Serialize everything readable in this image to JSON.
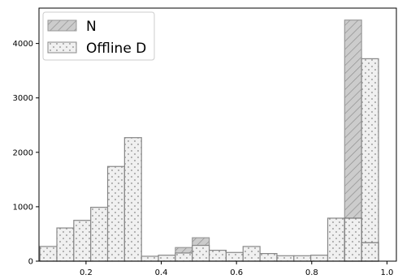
{
  "chart_data": {
    "type": "bar",
    "title": "",
    "xlabel": "",
    "ylabel": "",
    "xlim": [
      0.075,
      1.025
    ],
    "ylim": [
      0,
      4650
    ],
    "x_ticks": [
      0.2,
      0.4,
      0.6,
      0.8,
      1.0
    ],
    "x_tick_labels": [
      "0.2",
      "0.4",
      "0.6",
      "0.8",
      "1.0"
    ],
    "y_ticks": [
      0,
      1000,
      2000,
      3000,
      4000
    ],
    "y_tick_labels": [
      "0",
      "1000",
      "2000",
      "3000",
      "4000"
    ],
    "grid": false,
    "legend_position": "top-left",
    "bin_width": 0.045,
    "series": [
      {
        "name": "N",
        "pattern": "diagonal-hatch",
        "fill": "#cccccc",
        "stroke": "#999999",
        "bins": [
          {
            "x": 0.1,
            "value": 80
          },
          {
            "x": 0.145,
            "value": 60
          },
          {
            "x": 0.19,
            "value": 50
          },
          {
            "x": 0.235,
            "value": 40
          },
          {
            "x": 0.28,
            "value": 30
          },
          {
            "x": 0.325,
            "value": 30
          },
          {
            "x": 0.37,
            "value": 40
          },
          {
            "x": 0.415,
            "value": 70
          },
          {
            "x": 0.46,
            "value": 250
          },
          {
            "x": 0.505,
            "value": 430
          },
          {
            "x": 0.55,
            "value": 130
          },
          {
            "x": 0.595,
            "value": 90
          },
          {
            "x": 0.64,
            "value": 70
          },
          {
            "x": 0.685,
            "value": 60
          },
          {
            "x": 0.73,
            "value": 60
          },
          {
            "x": 0.775,
            "value": 60
          },
          {
            "x": 0.82,
            "value": 50
          },
          {
            "x": 0.865,
            "value": 80
          },
          {
            "x": 0.91,
            "value": 4430
          },
          {
            "x": 0.955,
            "value": 40
          }
        ]
      },
      {
        "name": "Offline D",
        "pattern": "dots",
        "fill": "#f0f0f0",
        "stroke": "#888888",
        "bins": [
          {
            "x": 0.1,
            "value": 270
          },
          {
            "x": 0.145,
            "value": 610
          },
          {
            "x": 0.19,
            "value": 750
          },
          {
            "x": 0.235,
            "value": 990
          },
          {
            "x": 0.28,
            "value": 1740
          },
          {
            "x": 0.325,
            "value": 2270
          },
          {
            "x": 0.37,
            "value": 90
          },
          {
            "x": 0.415,
            "value": 110
          },
          {
            "x": 0.46,
            "value": 150
          },
          {
            "x": 0.505,
            "value": 290
          },
          {
            "x": 0.55,
            "value": 200
          },
          {
            "x": 0.595,
            "value": 160
          },
          {
            "x": 0.64,
            "value": 270
          },
          {
            "x": 0.685,
            "value": 140
          },
          {
            "x": 0.73,
            "value": 100
          },
          {
            "x": 0.775,
            "value": 100
          },
          {
            "x": 0.82,
            "value": 110
          },
          {
            "x": 0.865,
            "value": 790
          },
          {
            "x": 0.91,
            "value": 310
          },
          {
            "x": 0.955,
            "value": 3720
          }
        ]
      }
    ],
    "overlap_bins": [
      {
        "x": 0.91,
        "value": 790
      },
      {
        "x": 0.955,
        "value": 340
      }
    ]
  }
}
